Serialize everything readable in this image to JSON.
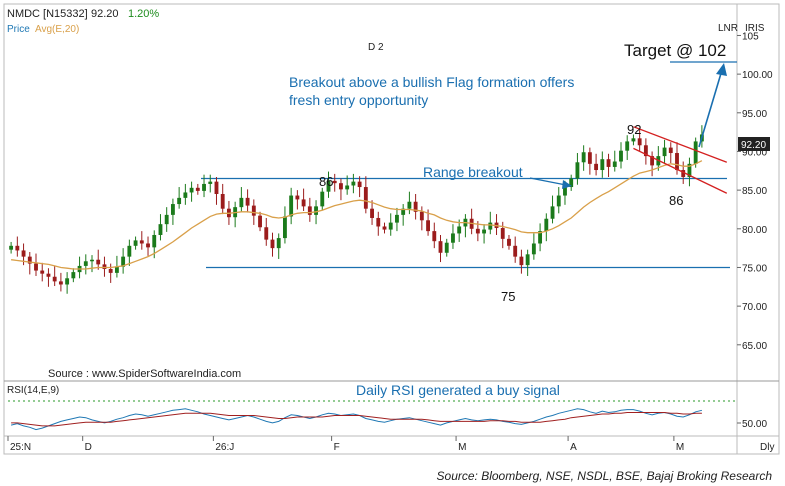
{
  "header": {
    "symbol": "NMDC [N15332]",
    "last_price": "92.20",
    "change": "1.20%",
    "legend_price": "Price",
    "legend_avg": "Avg(E,20)",
    "badge_lnr": "LNR",
    "badge_iris": "IRIS",
    "period_marker": "D 2",
    "timeframe": "Dly"
  },
  "colors": {
    "up": "#1b7a1b",
    "down": "#9b1c1c",
    "ema": "#d9a04a",
    "annotation": "#1a6fb0",
    "channel": "#d42020",
    "green_text": "#1e8c1e",
    "rsi": "#1f78b4",
    "rsi_signal": "#a02020"
  },
  "annotations": {
    "target": "Target @ 102",
    "flag": "Breakout above a bullish Flag formation offers",
    "flag2": "fresh entry opportunity",
    "range": "Range breakout",
    "label_92": "92",
    "label_86_left": "86",
    "label_86_right": "86",
    "label_75": "75",
    "source_chart": "Source : www.SpiderSoftwareIndia.com",
    "rsi_note": "Daily RSI generated a buy signal",
    "footer": "Source: Bloomberg, NSE, NSDL, BSE, Bajaj Broking Research"
  },
  "rsi_panel": {
    "label": "RSI(14,E,9)",
    "tick": "50.00"
  },
  "chart_data": {
    "type": "candlestick",
    "price_ticks": [
      "105",
      "100.00",
      "95.00",
      "90.00",
      "85.00",
      "80.00",
      "75.00",
      "70.00",
      "65.00"
    ],
    "price_tick_values": [
      105,
      100,
      95,
      90,
      85,
      80,
      75,
      70,
      65
    ],
    "x_labels": [
      "25:N",
      "D",
      "26:J",
      "F",
      "M",
      "A",
      "M"
    ],
    "x_label_bar_index": [
      0,
      12,
      33,
      52,
      72,
      90,
      107
    ],
    "ylim": [
      62,
      107
    ],
    "close": [
      77.8,
      77.2,
      76.4,
      75.5,
      74.6,
      74.2,
      73.8,
      73.2,
      72.8,
      73.6,
      74.4,
      75.2,
      75.8,
      76.0,
      75.4,
      74.8,
      74.3,
      75.1,
      76.4,
      77.8,
      78.5,
      78.1,
      77.6,
      79.2,
      80.6,
      81.8,
      83.2,
      84.0,
      84.7,
      85.3,
      84.9,
      85.8,
      86.1,
      84.5,
      82.6,
      81.5,
      82.8,
      84.0,
      83.0,
      81.7,
      80.2,
      78.6,
      77.5,
      78.8,
      81.6,
      84.3,
      83.8,
      82.9,
      81.8,
      82.9,
      84.8,
      86.2,
      85.9,
      85.1,
      85.6,
      86.1,
      85.4,
      82.6,
      81.4,
      80.3,
      79.9,
      80.8,
      81.8,
      82.6,
      83.5,
      82.2,
      81.1,
      79.7,
      78.4,
      76.9,
      78.2,
      79.4,
      80.3,
      81.3,
      80.0,
      79.4,
      79.9,
      80.8,
      80.1,
      78.7,
      77.8,
      76.4,
      75.3,
      76.7,
      78.1,
      79.7,
      81.3,
      82.9,
      84.3,
      85.4,
      86.5,
      88.6,
      89.9,
      88.4,
      87.6,
      89.0,
      88.0,
      88.7,
      90.1,
      91.3,
      91.7,
      90.8,
      89.4,
      88.2,
      89.4,
      90.5,
      89.8,
      87.6,
      86.7,
      88.4,
      91.3,
      92.2
    ],
    "ema20": [
      76.0,
      75.9,
      75.8,
      75.7,
      75.6,
      75.5,
      75.4,
      75.2,
      75.0,
      74.9,
      74.8,
      74.8,
      74.8,
      74.9,
      75.0,
      75.0,
      75.0,
      75.1,
      75.2,
      75.5,
      75.8,
      76.1,
      76.4,
      76.8,
      77.3,
      77.8,
      78.3,
      78.9,
      79.5,
      80.1,
      80.6,
      81.1,
      81.6,
      81.9,
      82.0,
      82.0,
      82.1,
      82.2,
      82.2,
      82.1,
      82.0,
      81.8,
      81.5,
      81.4,
      81.5,
      81.8,
      82.0,
      82.1,
      82.1,
      82.2,
      82.4,
      82.7,
      83.0,
      83.2,
      83.4,
      83.6,
      83.7,
      83.6,
      83.4,
      83.1,
      82.8,
      82.6,
      82.5,
      82.5,
      82.5,
      82.4,
      82.3,
      82.0,
      81.8,
      81.4,
      81.1,
      80.9,
      80.8,
      80.8,
      80.7,
      80.6,
      80.5,
      80.5,
      80.4,
      80.3,
      80.1,
      79.9,
      79.6,
      79.5,
      79.5,
      79.5,
      79.7,
      80.0,
      80.4,
      80.9,
      81.4,
      82.1,
      82.8,
      83.4,
      83.9,
      84.4,
      84.8,
      85.3,
      85.8,
      86.3,
      86.8,
      87.2,
      87.4,
      87.6,
      87.9,
      88.2,
      88.4,
      88.3,
      88.1,
      88.1,
      88.4,
      88.8
    ],
    "levels": {
      "range_high": 86.5,
      "range_low": 75.0,
      "flag_high_label": 92,
      "flag_low_label": 86,
      "target": 102
    },
    "rsi": [
      42,
      44,
      41,
      39,
      36,
      38,
      41,
      44,
      47,
      49,
      51,
      53,
      52,
      49,
      47,
      45,
      47,
      50,
      52,
      55,
      57,
      56,
      54,
      56,
      58,
      60,
      62,
      63,
      64,
      62,
      60,
      57,
      55,
      53,
      51,
      49,
      51,
      53,
      55,
      53,
      50,
      47,
      45,
      47,
      52,
      56,
      55,
      53,
      51,
      53,
      56,
      58,
      57,
      55,
      56,
      57,
      55,
      51,
      49,
      47,
      46,
      48,
      50,
      51,
      52,
      50,
      48,
      46,
      44,
      42,
      45,
      47,
      49,
      51,
      49,
      48,
      49,
      50,
      49,
      47,
      46,
      44,
      43,
      45,
      47,
      50,
      53,
      55,
      58,
      60,
      62,
      64,
      63,
      60,
      58,
      61,
      59,
      60,
      62,
      63,
      63,
      61,
      58,
      56,
      58,
      59,
      57,
      54,
      53,
      56,
      60,
      62
    ],
    "rsi_signal": [
      45,
      45,
      44,
      43,
      42,
      41,
      41,
      41,
      42,
      43,
      44,
      45,
      46,
      46,
      46,
      46,
      46,
      47,
      48,
      49,
      50,
      51,
      52,
      53,
      54,
      55,
      56,
      57,
      58,
      58,
      58,
      58,
      58,
      57,
      56,
      55,
      55,
      55,
      55,
      55,
      54,
      53,
      52,
      51,
      51,
      52,
      53,
      53,
      53,
      53,
      53,
      54,
      55,
      55,
      55,
      55,
      55,
      54,
      53,
      52,
      51,
      50,
      50,
      50,
      50,
      50,
      50,
      49,
      48,
      47,
      47,
      47,
      47,
      47,
      47,
      47,
      47,
      48,
      48,
      48,
      47,
      47,
      46,
      46,
      46,
      46,
      47,
      48,
      49,
      50,
      52,
      53,
      54,
      55,
      56,
      57,
      57,
      58,
      58,
      59,
      59,
      59,
      59,
      59,
      59,
      59,
      58,
      58,
      57,
      57,
      58,
      58
    ],
    "rsi_ylim": [
      30,
      80
    ]
  }
}
